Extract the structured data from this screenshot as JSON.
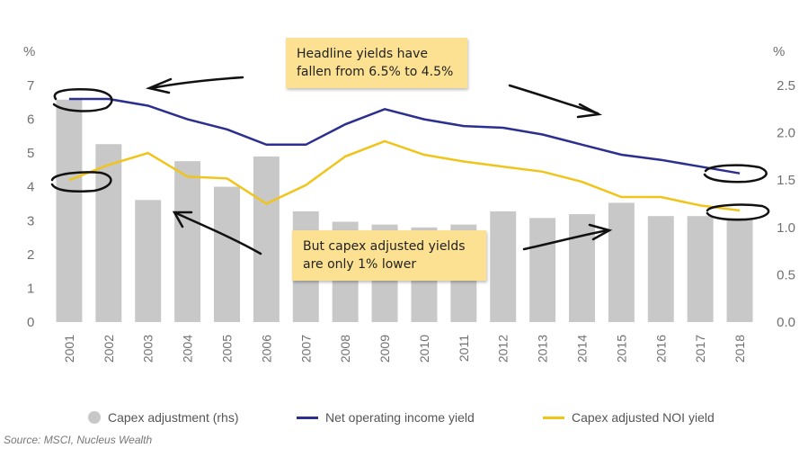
{
  "colors": {
    "bars": "#c8c8c8",
    "noi_line": "#2b2f8f",
    "capex_line": "#f0c419",
    "note_bg": "#fbe191",
    "ink": "#111111"
  },
  "axes": {
    "left_unit": "%",
    "right_unit": "%"
  },
  "source": "Source: MSCI, Nucleus Wealth",
  "notes": {
    "top_line1": "Headline yields have",
    "top_line2": "fallen from 6.5% to 4.5%",
    "bottom_line1": "But capex adjusted yields",
    "bottom_line2": "are only 1% lower"
  },
  "chart_data": {
    "type": "bar",
    "categories": [
      "2001",
      "2002",
      "2003",
      "2004",
      "2005",
      "2006",
      "2007",
      "2008",
      "2009",
      "2010",
      "2011",
      "2012",
      "2013",
      "2014",
      "2015",
      "2016",
      "2017",
      "2018"
    ],
    "series": [
      {
        "name": "Capex adjustment (rhs)",
        "type": "bar",
        "axis": "right",
        "values": [
          2.35,
          1.88,
          1.29,
          1.7,
          1.43,
          1.75,
          1.17,
          1.06,
          1.03,
          1.0,
          1.03,
          1.17,
          1.1,
          1.14,
          1.26,
          1.12,
          1.12,
          1.1
        ]
      },
      {
        "name": "Net operating income yield",
        "type": "line",
        "axis": "left",
        "values": [
          6.6,
          6.6,
          6.4,
          6.0,
          5.7,
          5.25,
          5.25,
          5.85,
          6.3,
          6.0,
          5.8,
          5.75,
          5.55,
          5.25,
          4.95,
          4.8,
          4.6,
          4.4
        ]
      },
      {
        "name": "Capex adjusted NOI yield",
        "type": "line",
        "axis": "left",
        "values": [
          4.2,
          4.65,
          5.0,
          4.3,
          4.25,
          3.5,
          4.05,
          4.9,
          5.35,
          4.95,
          4.75,
          4.6,
          4.45,
          4.15,
          3.7,
          3.7,
          3.45,
          3.3
        ]
      }
    ],
    "ylim_left": [
      0,
      7
    ],
    "ylim_right": [
      0,
      2.5
    ],
    "yticks_left": [
      "0",
      "1",
      "2",
      "3",
      "4",
      "5",
      "6",
      "7"
    ],
    "yticks_right": [
      "0.0",
      "0.5",
      "1.0",
      "1.5",
      "2.0",
      "2.5"
    ],
    "ylabel_left": "%",
    "ylabel_right": "%",
    "grid": false,
    "legend_position": "bottom"
  }
}
